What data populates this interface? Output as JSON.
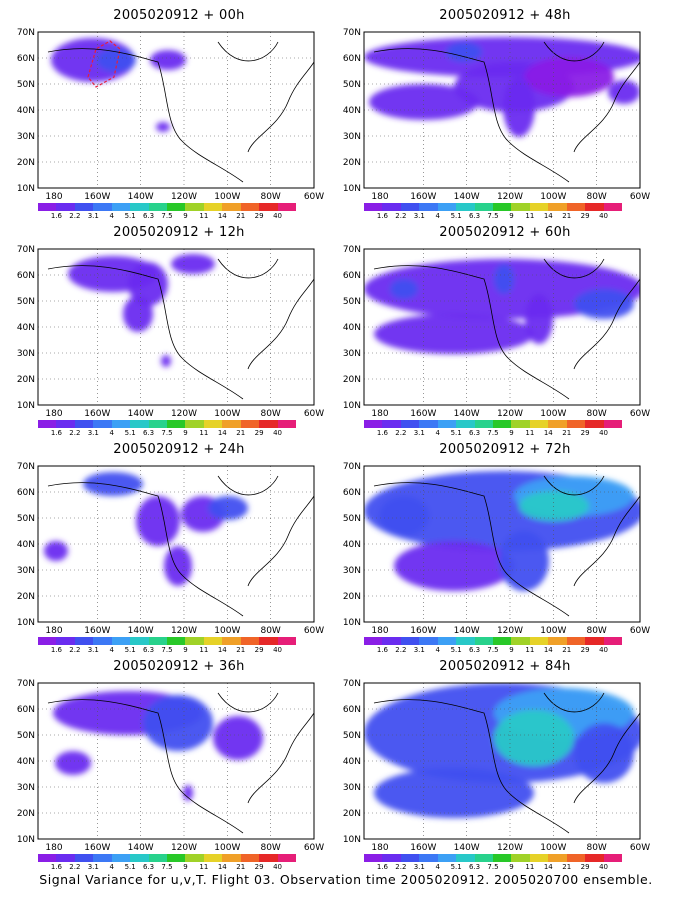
{
  "panels": [
    {
      "title": "2005020912 + 00h"
    },
    {
      "title": "2005020912 + 48h"
    },
    {
      "title": "2005020912 + 12h"
    },
    {
      "title": "2005020912 + 60h"
    },
    {
      "title": "2005020912 + 24h"
    },
    {
      "title": "2005020912 + 72h"
    },
    {
      "title": "2005020912 + 36h"
    },
    {
      "title": "2005020912 + 84h"
    }
  ],
  "axes": {
    "lat_labels": [
      "70N",
      "60N",
      "50N",
      "40N",
      "30N",
      "20N",
      "10N"
    ],
    "lon_labels": [
      "180",
      "160W",
      "140W",
      "120W",
      "100W",
      "80W",
      "60W"
    ]
  },
  "legend": {
    "levels": [
      "1.6",
      "2.2",
      "3.1",
      "4",
      "5.1",
      "6.3",
      "7.5",
      "9",
      "11",
      "14",
      "21",
      "29",
      "40"
    ],
    "colors": [
      "#8a1ee6",
      "#6a2cf0",
      "#4050f0",
      "#3c78f5",
      "#3ca0f5",
      "#28c8c8",
      "#28d28c",
      "#28c828",
      "#a0d228",
      "#e6d228",
      "#f0a028",
      "#f06428",
      "#e62828",
      "#e61e78"
    ]
  },
  "caption": "Signal Variance for u,v,T. Flight 03. Observation time 2005020912. 2005020700 ensemble."
}
